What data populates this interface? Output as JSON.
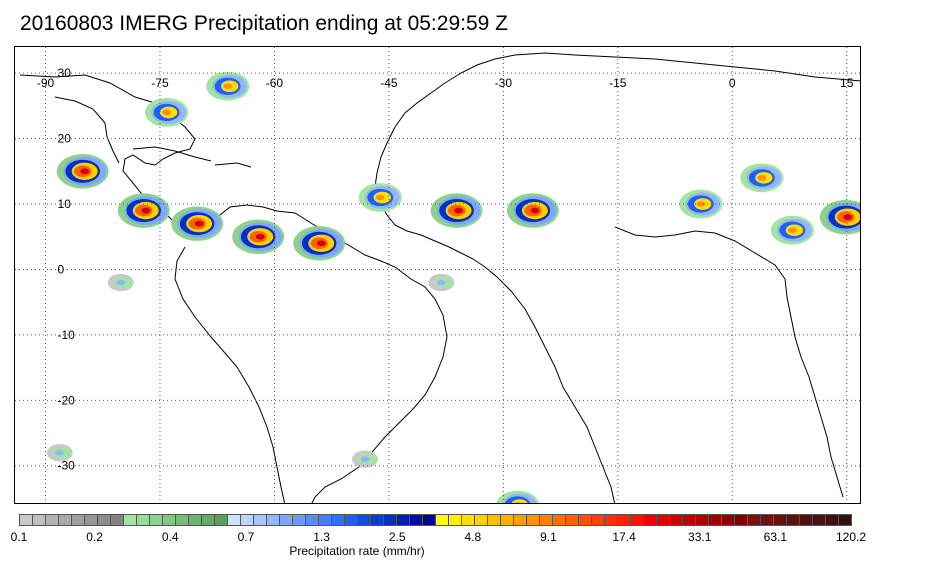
{
  "title": "20160803 IMERG Precipitation ending at 05:29:59 Z",
  "map": {
    "lon_labels": [
      "-90",
      "-75",
      "-60",
      "-45",
      "-30",
      "-15",
      "0",
      "15"
    ],
    "lat_labels": [
      "30",
      "20",
      "10",
      "0",
      "-10",
      "-20",
      "-30"
    ],
    "projection_extent": {
      "lon_min": -94,
      "lon_max": 17,
      "lat_min": -36,
      "lat_max": 34
    },
    "grid": true,
    "gridline_style": "dotted"
  },
  "colorbar": {
    "title": "Precipitation rate (mm/hr)",
    "tick_labels": [
      "0.1",
      "0.2",
      "0.4",
      "0.7",
      "1.3",
      "2.5",
      "4.8",
      "9.1",
      "17.4",
      "33.1",
      "63.1",
      "120.2"
    ],
    "colors": [
      "#c8c8c8",
      "#bebebe",
      "#b4b4b4",
      "#aaaaaa",
      "#a0a0a0",
      "#969696",
      "#8c8c8c",
      "#828282",
      "#a0e6a0",
      "#96dc96",
      "#8cd28c",
      "#82c882",
      "#78be78",
      "#6eb46e",
      "#64aa64",
      "#5aa05a",
      "#cfe0ff",
      "#bcd2ff",
      "#a8c4ff",
      "#94b6ff",
      "#80a8ff",
      "#6c9aff",
      "#588cff",
      "#447eff",
      "#3070ff",
      "#2060f0",
      "#1050e0",
      "#0040d0",
      "#0030c0",
      "#0020b0",
      "#0010a0",
      "#000090",
      "#ffff00",
      "#fff000",
      "#ffe000",
      "#ffd000",
      "#ffc000",
      "#ffb000",
      "#ffa000",
      "#ff9000",
      "#ff8000",
      "#ff7000",
      "#ff6000",
      "#ff5000",
      "#ff4000",
      "#ff3000",
      "#ff2000",
      "#ff1000",
      "#f00000",
      "#e00000",
      "#d00000",
      "#c00000",
      "#b00000",
      "#a00000",
      "#900000",
      "#800000",
      "#7a1010",
      "#701010",
      "#661010",
      "#5c1010",
      "#521010",
      "#481010",
      "#3e1010",
      "#341010"
    ]
  },
  "precip_cells": [
    {
      "lon": -85,
      "lat": 15,
      "intensity": "heavy"
    },
    {
      "lon": -77,
      "lat": 9,
      "intensity": "heavy"
    },
    {
      "lon": -70,
      "lat": 7,
      "intensity": "heavy"
    },
    {
      "lon": -62,
      "lat": 5,
      "intensity": "heavy"
    },
    {
      "lon": -54,
      "lat": 4,
      "intensity": "heavy"
    },
    {
      "lon": -36,
      "lat": 9,
      "intensity": "heavy"
    },
    {
      "lon": -26,
      "lat": 9,
      "intensity": "heavy"
    },
    {
      "lon": -4,
      "lat": 10,
      "intensity": "moderate"
    },
    {
      "lon": 4,
      "lat": 14,
      "intensity": "moderate"
    },
    {
      "lon": 8,
      "lat": 6,
      "intensity": "moderate"
    },
    {
      "lon": 15,
      "lat": 8,
      "intensity": "heavy"
    },
    {
      "lon": -66,
      "lat": 28,
      "intensity": "moderate"
    },
    {
      "lon": -74,
      "lat": 24,
      "intensity": "moderate"
    },
    {
      "lon": -46,
      "lat": 11,
      "intensity": "moderate"
    },
    {
      "lon": -28,
      "lat": -36,
      "intensity": "moderate"
    },
    {
      "lon": -38,
      "lat": -2,
      "intensity": "light"
    },
    {
      "lon": -48,
      "lat": -29,
      "intensity": "light"
    },
    {
      "lon": -88,
      "lat": -28,
      "intensity": "light"
    },
    {
      "lon": -80,
      "lat": -2,
      "intensity": "light"
    }
  ]
}
